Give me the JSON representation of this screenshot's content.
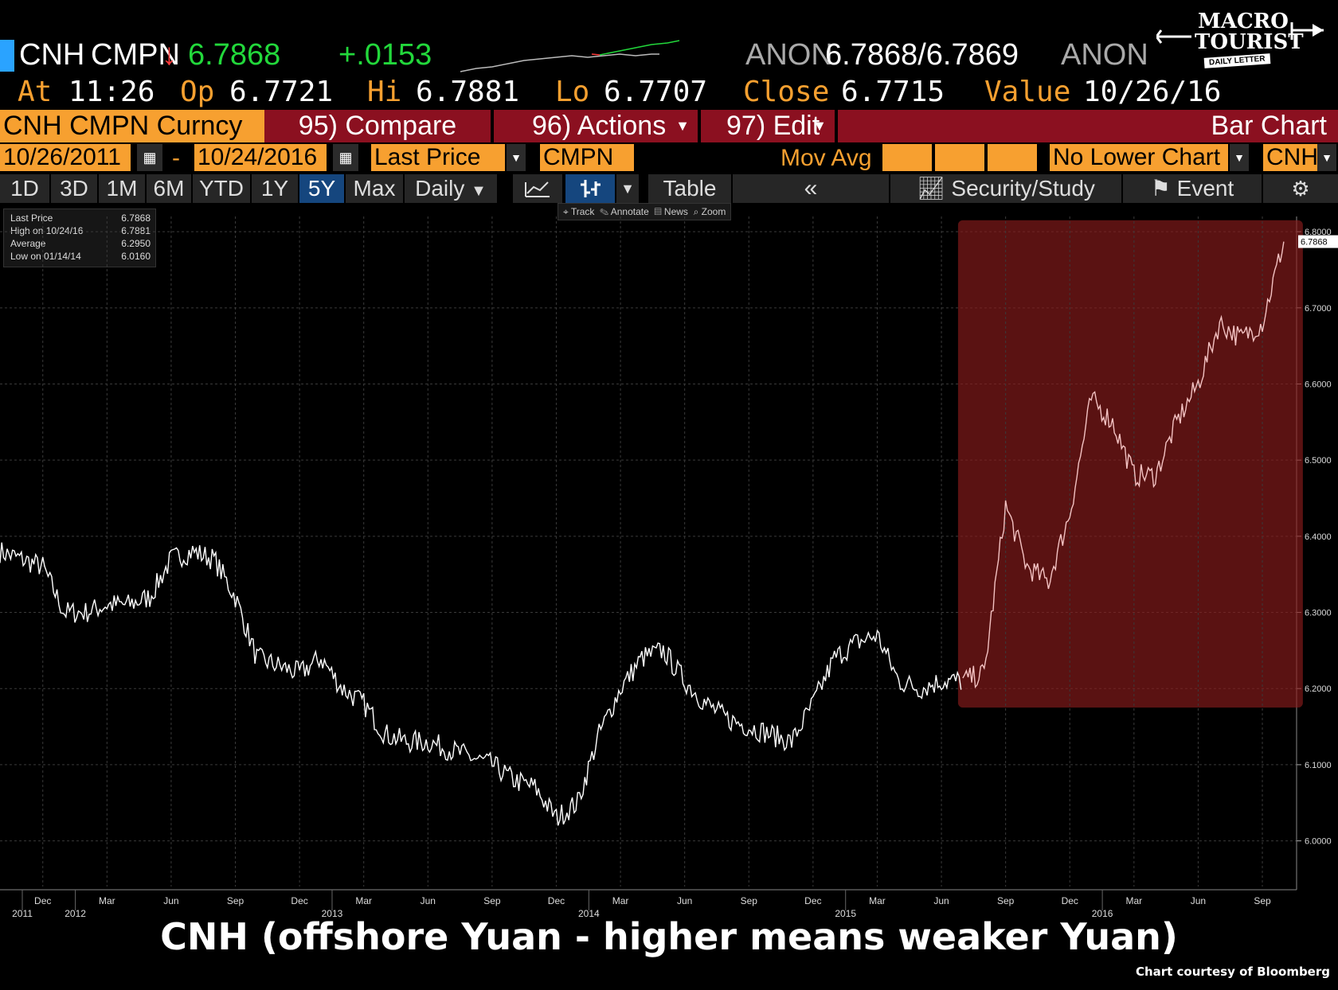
{
  "header": {
    "ticker": "CNH",
    "source": "CMPN",
    "arrow": "↓",
    "last": "6.7868",
    "change": "+.0153",
    "bid_src": "ANON",
    "bid_ask": "6.7868/6.7869",
    "ask_src": "ANON",
    "at_label": "At",
    "at_time": "11:26",
    "op_label": "Op",
    "op_val": "6.7721",
    "hi_label": "Hi",
    "hi_val": "6.7881",
    "lo_label": "Lo",
    "lo_val": "6.7707",
    "close_label": "Close",
    "close_val": "6.7715",
    "value_label": "Value",
    "value_date": "10/26/16"
  },
  "logo": {
    "line1": "MACRO",
    "line2": "TOURIST",
    "line3": "DAILY LETTER"
  },
  "menubar": {
    "security": "CNH CMPN Curncy",
    "compare": "95) Compare",
    "actions": "96) Actions",
    "edit": "97) Edit",
    "chart_type": "Bar Chart"
  },
  "daterow": {
    "start": "10/26/2011",
    "dash": "-",
    "end": "10/24/2016",
    "field": "Last Price",
    "source": "CMPN",
    "mov_avg": "Mov Avg",
    "lower": "No Lower Chart",
    "ccy": "CNH"
  },
  "toolbar": {
    "periods": [
      "1D",
      "3D",
      "1M",
      "6M",
      "YTD",
      "1Y",
      "5Y",
      "Max"
    ],
    "selected": "5Y",
    "freq": "Daily",
    "table": "Table",
    "collapse": "«",
    "security_study": "Security/Study",
    "event": "Event"
  },
  "subtoolbar": {
    "track": "Track",
    "annotate": "Annotate",
    "news": "News",
    "zoom": "Zoom"
  },
  "legend": [
    {
      "label": "Last Price",
      "value": "6.7868"
    },
    {
      "label": "High on 10/24/16",
      "value": "6.7881"
    },
    {
      "label": "Average",
      "value": "6.2950"
    },
    {
      "label": "Low on 01/14/14",
      "value": "6.0160"
    }
  ],
  "title": "CNH (offshore Yuan - higher means weaker Yuan)",
  "credit": "Chart courtesy of Bloomberg",
  "chart_data": {
    "type": "line",
    "ylim": [
      5.94,
      6.82
    ],
    "yticks": [
      "6.0000",
      "6.1000",
      "6.2000",
      "6.3000",
      "6.4000",
      "6.5000",
      "6.6000",
      "6.7000",
      "6.8000"
    ],
    "last_label": "6.7868",
    "xticks": [
      "Dec",
      "Mar",
      "Jun",
      "Sep",
      "Dec",
      "Mar",
      "Jun",
      "Sep",
      "Dec",
      "Mar",
      "Jun",
      "Sep",
      "Dec",
      "Mar",
      "Jun",
      "Sep",
      "Dec",
      "Mar",
      "Jun",
      "Sep"
    ],
    "years": [
      {
        "label": "2011",
        "t": 0.0
      },
      {
        "label": "2012",
        "t": 0.2
      },
      {
        "label": "2013",
        "t": 0.4
      },
      {
        "label": "2014",
        "t": 0.6
      },
      {
        "label": "2015",
        "t": 0.8
      },
      {
        "label": "2016",
        "t": 1.0
      }
    ],
    "highlight": {
      "from": "2015-07",
      "to": "2016-10",
      "color": "#8b1c1c"
    },
    "series": [
      {
        "values": [
          [
            "2011-10",
            6.38
          ],
          [
            "2011-11",
            6.37
          ],
          [
            "2011-12",
            6.36
          ],
          [
            "2012-01",
            6.3
          ],
          [
            "2012-02",
            6.3
          ],
          [
            "2012-03",
            6.31
          ],
          [
            "2012-04",
            6.31
          ],
          [
            "2012-05",
            6.32
          ],
          [
            "2012-06",
            6.37
          ],
          [
            "2012-07",
            6.38
          ],
          [
            "2012-08",
            6.37
          ],
          [
            "2012-09",
            6.32
          ],
          [
            "2012-10",
            6.24
          ],
          [
            "2012-11",
            6.23
          ],
          [
            "2012-12",
            6.22
          ],
          [
            "2013-01",
            6.24
          ],
          [
            "2013-02",
            6.2
          ],
          [
            "2013-03",
            6.18
          ],
          [
            "2013-04",
            6.14
          ],
          [
            "2013-05",
            6.13
          ],
          [
            "2013-06",
            6.13
          ],
          [
            "2013-07",
            6.12
          ],
          [
            "2013-08",
            6.11
          ],
          [
            "2013-09",
            6.1
          ],
          [
            "2013-10",
            6.08
          ],
          [
            "2013-11",
            6.07
          ],
          [
            "2013-12",
            6.03
          ],
          [
            "2014-01",
            6.05
          ],
          [
            "2014-02",
            6.14
          ],
          [
            "2014-03",
            6.2
          ],
          [
            "2014-04",
            6.24
          ],
          [
            "2014-05",
            6.25
          ],
          [
            "2014-06",
            6.21
          ],
          [
            "2014-07",
            6.18
          ],
          [
            "2014-08",
            6.16
          ],
          [
            "2014-09",
            6.15
          ],
          [
            "2014-10",
            6.14
          ],
          [
            "2014-11",
            6.13
          ],
          [
            "2014-12",
            6.18
          ],
          [
            "2015-01",
            6.24
          ],
          [
            "2015-02",
            6.26
          ],
          [
            "2015-03",
            6.27
          ],
          [
            "2015-04",
            6.21
          ],
          [
            "2015-05",
            6.2
          ],
          [
            "2015-06",
            6.21
          ],
          [
            "2015-07",
            6.21
          ],
          [
            "2015-08",
            6.22
          ],
          [
            "2015-09",
            6.44
          ],
          [
            "2015-10",
            6.36
          ],
          [
            "2015-11",
            6.34
          ],
          [
            "2015-12",
            6.43
          ],
          [
            "2016-01",
            6.58
          ],
          [
            "2016-02",
            6.55
          ],
          [
            "2016-03",
            6.48
          ],
          [
            "2016-04",
            6.48
          ],
          [
            "2016-05",
            6.55
          ],
          [
            "2016-06",
            6.6
          ],
          [
            "2016-07",
            6.68
          ],
          [
            "2016-08",
            6.66
          ],
          [
            "2016-09",
            6.68
          ],
          [
            "2016-10",
            6.787
          ]
        ]
      }
    ]
  }
}
